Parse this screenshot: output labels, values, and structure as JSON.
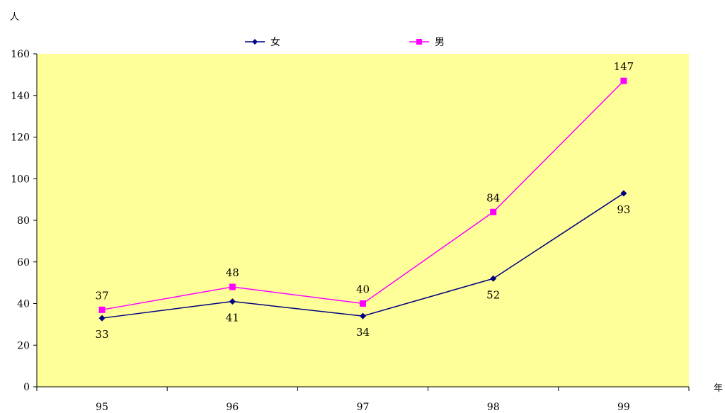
{
  "chart_data": {
    "type": "line",
    "ylabel": "人",
    "xlabel": "年",
    "categories": [
      "95",
      "96",
      "97",
      "98",
      "99"
    ],
    "ylim": [
      0,
      160
    ],
    "yticks": [
      "0",
      "20",
      "40",
      "60",
      "80",
      "100",
      "120",
      "140",
      "160"
    ],
    "grid": false,
    "legend_position": "top",
    "plot_background": "#FFFF99",
    "series": [
      {
        "name": "女",
        "values": [
          33,
          41,
          34,
          52,
          93
        ],
        "color": "#000080",
        "marker": "diamond",
        "labels": [
          "33",
          "41",
          "34",
          "52",
          "93"
        ]
      },
      {
        "name": "男",
        "values": [
          37,
          48,
          40,
          84,
          147
        ],
        "color": "#FF00FF",
        "marker": "square",
        "labels": [
          "37",
          "48",
          "40",
          "84",
          "147"
        ]
      }
    ]
  }
}
